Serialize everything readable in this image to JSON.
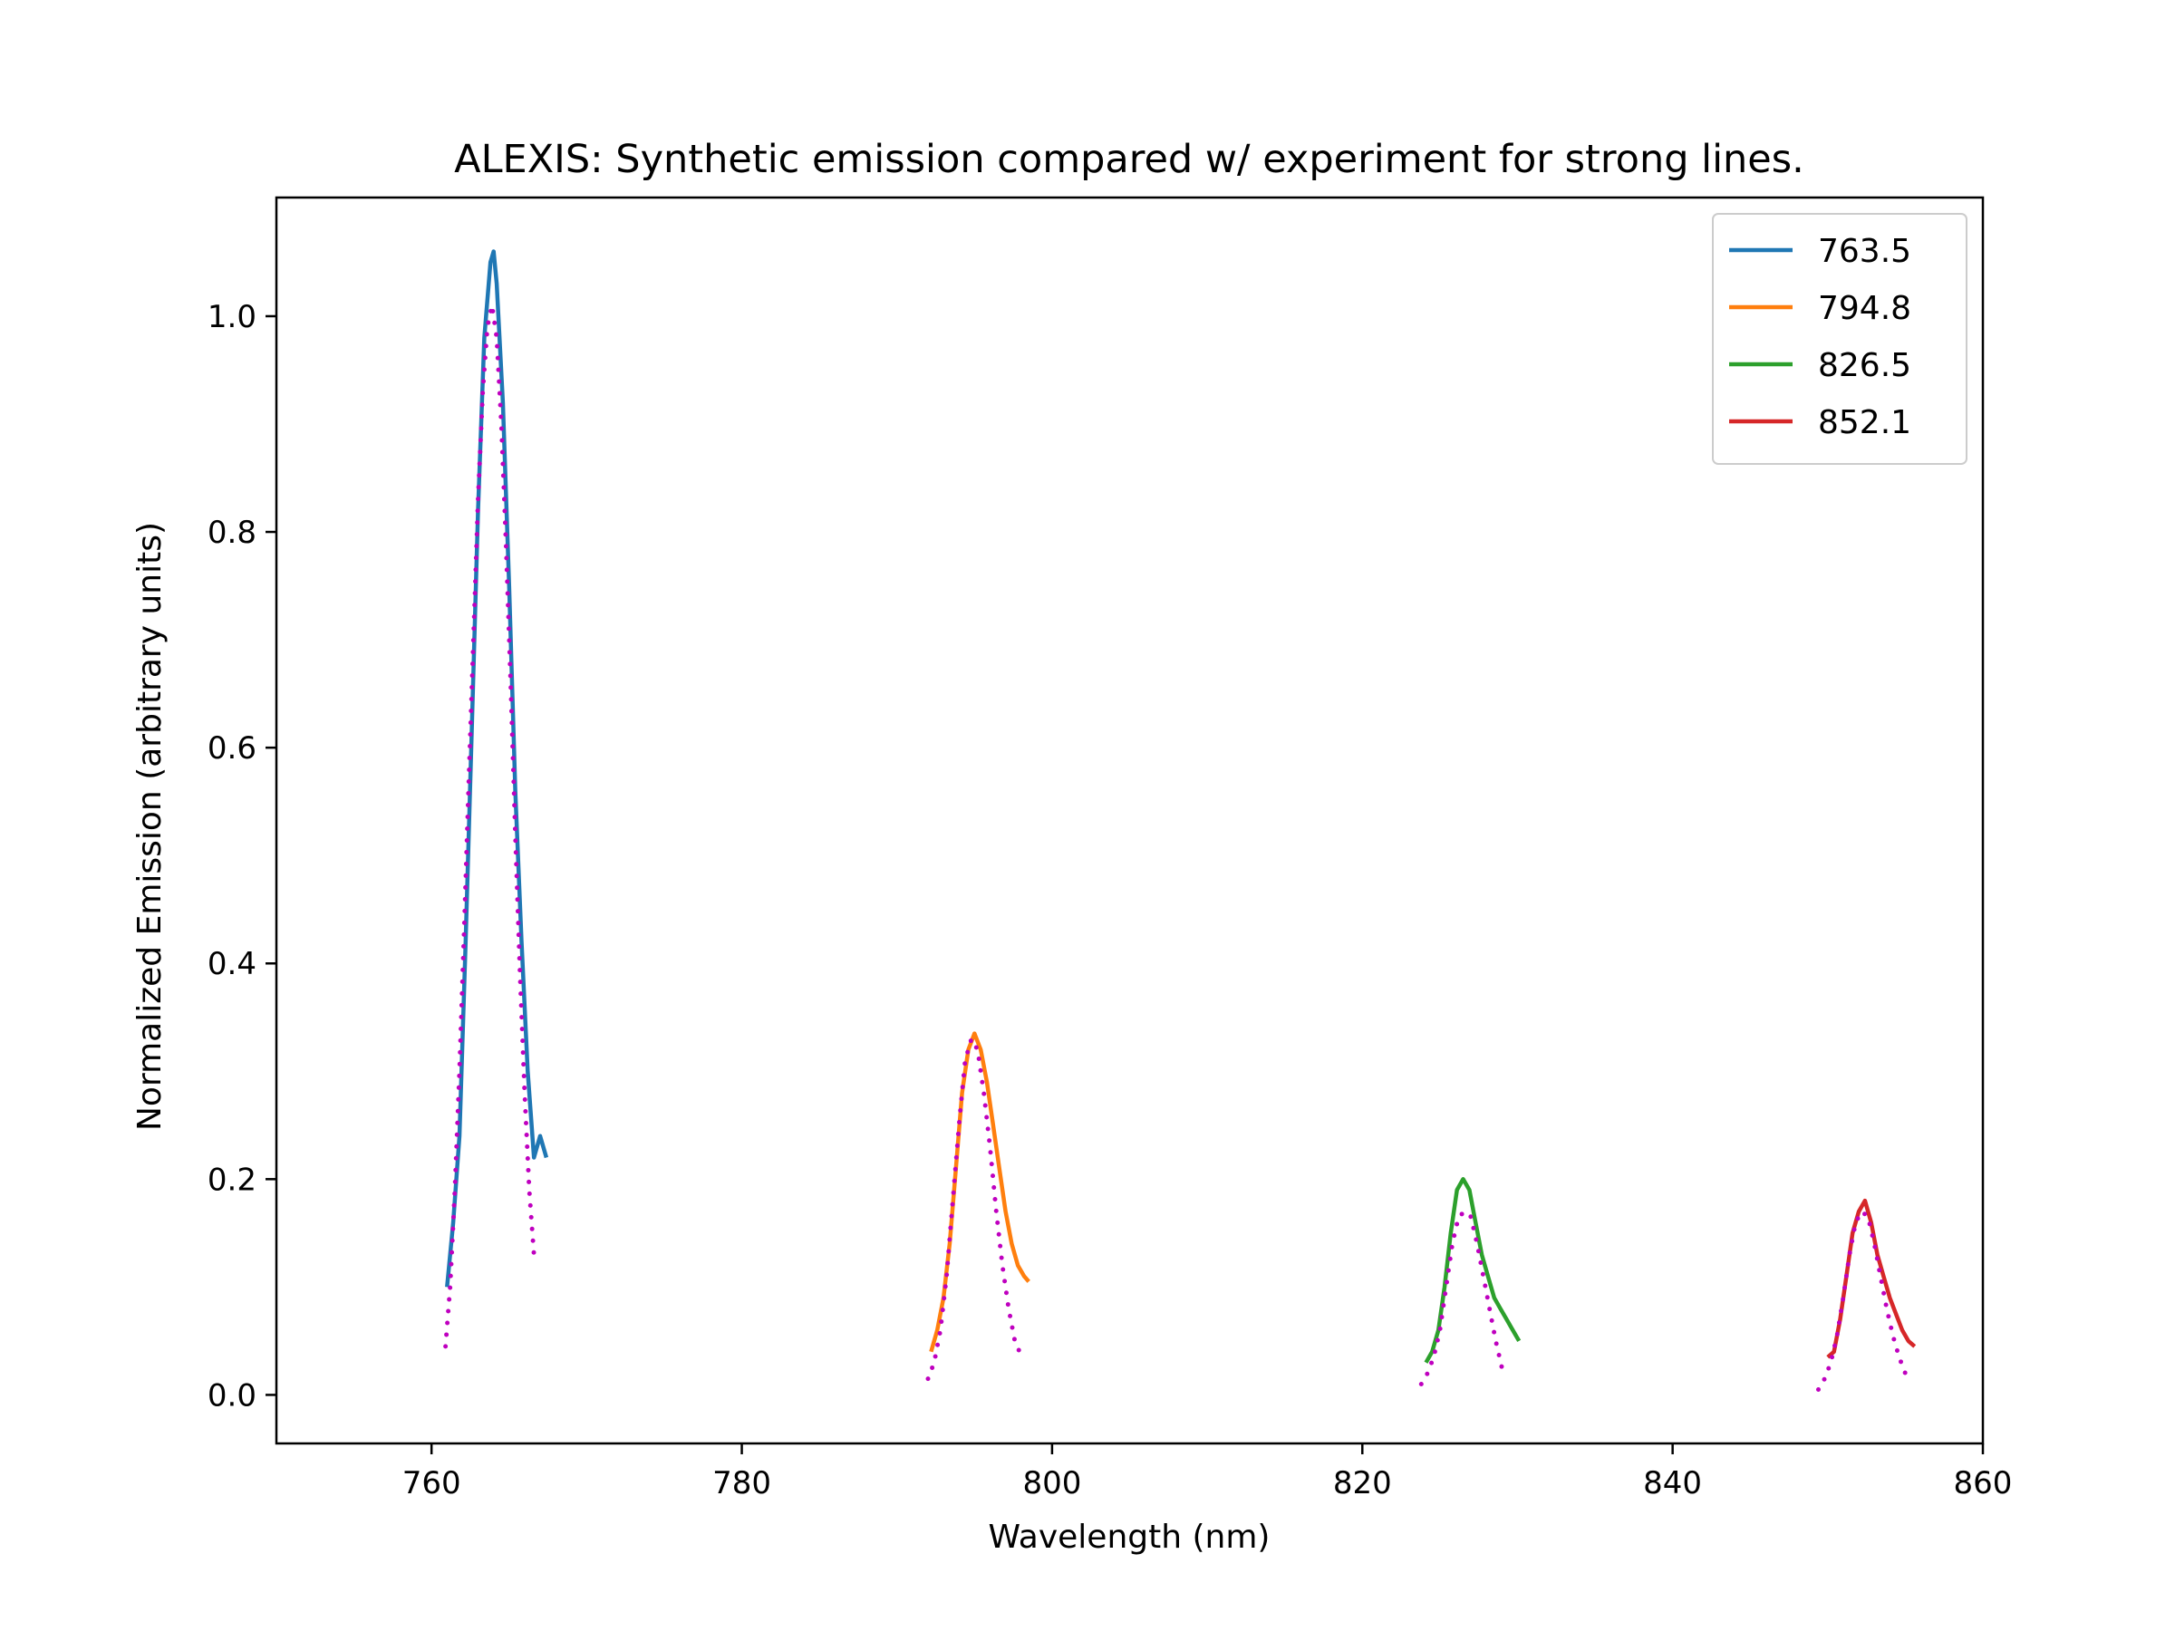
{
  "chart_data": {
    "type": "line",
    "title": "ALEXIS: Synthetic emission compared w/ experiment for strong lines.",
    "xlabel": "Wavelength (nm)",
    "ylabel": "Normalized Emission (arbitrary units)",
    "xlim": [
      750,
      860
    ],
    "ylim": [
      -0.045,
      1.11
    ],
    "xticks": [
      760,
      780,
      800,
      820,
      840,
      860
    ],
    "yticks": [
      0.0,
      0.2,
      0.4,
      0.6,
      0.8,
      1.0
    ],
    "grid": false,
    "legend_position": "top-right",
    "series": [
      {
        "name": "763.5",
        "color": "#1f77b4",
        "style": "solid",
        "x": [
          761.0,
          761.4,
          761.8,
          762.2,
          762.6,
          763.0,
          763.4,
          763.8,
          764.0,
          764.2,
          764.6,
          765.0,
          765.4,
          765.8,
          766.2,
          766.6,
          767.0,
          767.4
        ],
        "y": [
          0.1,
          0.16,
          0.24,
          0.42,
          0.62,
          0.82,
          0.98,
          1.05,
          1.06,
          1.03,
          0.92,
          0.75,
          0.56,
          0.42,
          0.3,
          0.22,
          0.24,
          0.22
        ]
      },
      {
        "name": "794.8",
        "color": "#ff7f0e",
        "style": "solid",
        "x": [
          792.2,
          792.6,
          793.0,
          793.4,
          793.8,
          794.2,
          794.6,
          795.0,
          795.4,
          795.8,
          796.2,
          796.6,
          797.0,
          797.4,
          797.8,
          798.2,
          798.5
        ],
        "y": [
          0.04,
          0.06,
          0.09,
          0.14,
          0.21,
          0.28,
          0.32,
          0.335,
          0.32,
          0.29,
          0.25,
          0.21,
          0.17,
          0.14,
          0.12,
          0.11,
          0.105
        ]
      },
      {
        "name": "826.5",
        "color": "#2ca02c",
        "style": "solid",
        "x": [
          824.1,
          824.5,
          824.9,
          825.3,
          825.7,
          826.1,
          826.5,
          826.9,
          827.3,
          827.7,
          828.1,
          828.5,
          828.9,
          829.3,
          829.7,
          830.1
        ],
        "y": [
          0.03,
          0.04,
          0.06,
          0.1,
          0.15,
          0.19,
          0.2,
          0.19,
          0.16,
          0.13,
          0.11,
          0.09,
          0.08,
          0.07,
          0.06,
          0.05
        ]
      },
      {
        "name": "852.1",
        "color": "#d62728",
        "style": "solid",
        "x": [
          850.0,
          850.4,
          850.8,
          851.2,
          851.6,
          852.0,
          852.4,
          852.8,
          853.2,
          853.6,
          854.0,
          854.4,
          854.8,
          855.2,
          855.6
        ],
        "y": [
          0.035,
          0.04,
          0.07,
          0.11,
          0.15,
          0.17,
          0.18,
          0.16,
          0.13,
          0.11,
          0.09,
          0.075,
          0.06,
          0.05,
          0.045
        ]
      },
      {
        "color": "#bf00bf",
        "style": "dotted",
        "x": [
          760.9,
          761.2,
          761.5,
          761.8,
          762.1,
          762.4,
          762.7,
          763.0,
          763.3,
          763.6,
          763.9,
          764.2,
          764.5,
          764.8,
          765.1,
          765.4,
          765.7,
          766.0,
          766.3,
          766.6
        ],
        "y": [
          0.045,
          0.1,
          0.19,
          0.3,
          0.43,
          0.57,
          0.7,
          0.83,
          0.93,
          0.99,
          1.01,
          0.98,
          0.9,
          0.79,
          0.66,
          0.52,
          0.39,
          0.28,
          0.19,
          0.13
        ]
      },
      {
        "color": "#bf00bf",
        "style": "dotted",
        "x": [
          792.0,
          792.4,
          792.8,
          793.2,
          793.6,
          794.0,
          794.4,
          794.8,
          795.2,
          795.6,
          796.0,
          796.4,
          796.8,
          797.2,
          797.6,
          797.9
        ],
        "y": [
          0.015,
          0.03,
          0.06,
          0.11,
          0.18,
          0.25,
          0.31,
          0.33,
          0.32,
          0.28,
          0.23,
          0.17,
          0.12,
          0.08,
          0.05,
          0.04
        ]
      },
      {
        "color": "#bf00bf",
        "style": "dotted",
        "x": [
          823.8,
          824.2,
          824.6,
          825.0,
          825.4,
          825.8,
          826.2,
          826.6,
          827.0,
          827.4,
          827.8,
          828.2,
          828.6,
          829.0
        ],
        "y": [
          0.01,
          0.02,
          0.035,
          0.06,
          0.1,
          0.14,
          0.165,
          0.17,
          0.165,
          0.14,
          0.11,
          0.08,
          0.05,
          0.025
        ]
      },
      {
        "color": "#bf00bf",
        "style": "dotted",
        "x": [
          849.4,
          849.8,
          850.2,
          850.6,
          851.0,
          851.4,
          851.8,
          852.2,
          852.6,
          853.0,
          853.4,
          853.8,
          854.2,
          854.6,
          855.0
        ],
        "y": [
          0.005,
          0.015,
          0.03,
          0.055,
          0.09,
          0.13,
          0.16,
          0.17,
          0.165,
          0.14,
          0.11,
          0.08,
          0.055,
          0.035,
          0.02
        ]
      }
    ]
  }
}
